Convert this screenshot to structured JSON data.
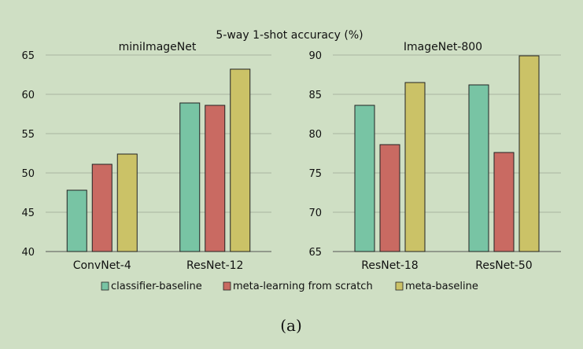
{
  "figure": {
    "title": "5-way 1-shot accuracy (%)",
    "caption": "(a)"
  },
  "colors": {
    "background": "#cfdfc4",
    "classifier_baseline": "#78c4a4",
    "meta_learning_from_scratch": "#c96a62",
    "meta_baseline": "#cbc267",
    "gridline": "#a9b6a0",
    "bar_edge": "#222222"
  },
  "legend": {
    "placement": "bottom-center",
    "items": [
      "classifier-baseline",
      "meta-learning from scratch",
      "meta-baseline"
    ]
  },
  "chart_data": [
    {
      "type": "bar",
      "title": "miniImageNet",
      "categories": [
        "ConvNet-4",
        "ResNet-12"
      ],
      "series": [
        {
          "name": "classifier-baseline",
          "values": [
            47.8,
            58.9
          ]
        },
        {
          "name": "meta-learning from scratch",
          "values": [
            51.1,
            58.6
          ]
        },
        {
          "name": "meta-baseline",
          "values": [
            52.4,
            63.2
          ]
        }
      ],
      "ylim": [
        40,
        65
      ],
      "yticks": [
        40,
        45,
        50,
        55,
        60,
        65
      ],
      "grid": true
    },
    {
      "type": "bar",
      "title": "ImageNet-800",
      "categories": [
        "ResNet-18",
        "ResNet-50"
      ],
      "series": [
        {
          "name": "classifier-baseline",
          "values": [
            83.6,
            86.2
          ]
        },
        {
          "name": "meta-learning from scratch",
          "values": [
            78.6,
            77.6
          ]
        },
        {
          "name": "meta-baseline",
          "values": [
            86.5,
            89.9
          ]
        }
      ],
      "ylim": [
        65,
        90
      ],
      "yticks": [
        65,
        70,
        75,
        80,
        85,
        90
      ],
      "grid": true
    }
  ]
}
